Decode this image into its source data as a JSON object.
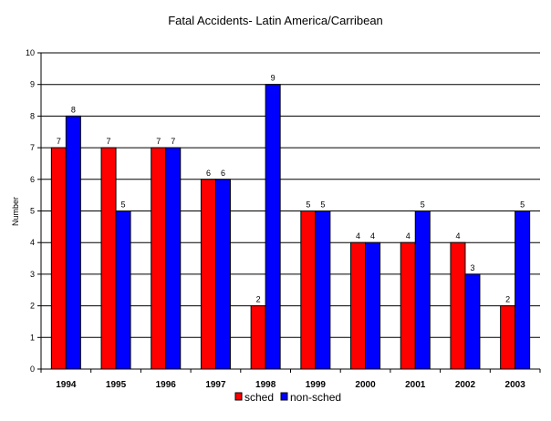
{
  "chart_data": {
    "type": "bar",
    "title": "Fatal Accidents- Latin America/Carribean",
    "ylabel": "Number",
    "xlabel": "",
    "ylim": [
      0,
      10
    ],
    "yticks": [
      0,
      1,
      2,
      3,
      4,
      5,
      6,
      7,
      8,
      9,
      10
    ],
    "grid": true,
    "legend": "bottom",
    "categories": [
      "1994",
      "1995",
      "1996",
      "1997",
      "1998",
      "1999",
      "2000",
      "2001",
      "2002",
      "2003"
    ],
    "series": [
      {
        "name": "sched",
        "color": "#ff0000",
        "values": [
          7,
          7,
          7,
          6,
          2,
          5,
          4,
          4,
          4,
          2
        ]
      },
      {
        "name": "non-sched",
        "color": "#0000ff",
        "values": [
          8,
          5,
          7,
          6,
          9,
          5,
          4,
          5,
          3,
          5
        ]
      }
    ]
  }
}
